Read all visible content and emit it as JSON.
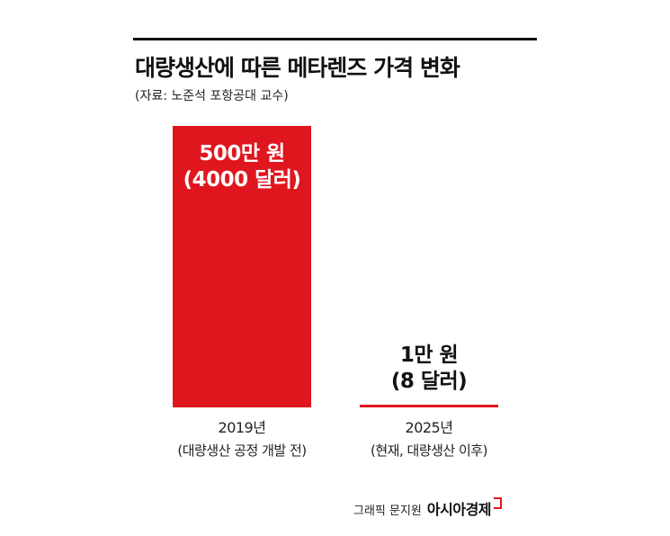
{
  "title": "대량생산에 따른 메타렌즈 가격 변화",
  "source": "(자료: 노준석 포항공대 교수)",
  "footer": {
    "credit": "그래픽 문지원",
    "brand": "아시아경제"
  },
  "colors": {
    "bar": "#e0161e",
    "bar_label": "#ffffff",
    "value_label": "#111111"
  },
  "chart_data": {
    "type": "bar",
    "title": "대량생산에 따른 메타렌즈 가격 변화",
    "unit": "원",
    "ylim": [
      0,
      5000000
    ],
    "grid": false,
    "legend": "none",
    "categories": [
      {
        "year": "2019년",
        "note": "(대량생산 공정 개발 전)"
      },
      {
        "year": "2025년",
        "note": "(현재, 대량생산 이후)"
      }
    ],
    "values": [
      5000000,
      10000
    ],
    "value_labels": [
      [
        "500만 원",
        "(4000 달러)"
      ],
      [
        "1만 원",
        "(8 달러)"
      ]
    ],
    "values_usd": [
      4000,
      8
    ]
  }
}
